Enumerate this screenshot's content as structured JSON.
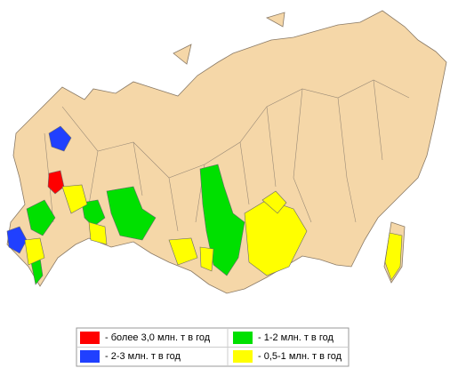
{
  "legend": {
    "items": [
      {
        "label": "- более 3,0 млн. т в год",
        "color": "#ff0000"
      },
      {
        "label": "- 1-2 млн. т в год",
        "color": "#00e000"
      },
      {
        "label": "- 2-3 млн. т в год",
        "color": "#2040ff"
      },
      {
        "label": "- 0,5-1 млн. т в год",
        "color": "#ffff00"
      }
    ]
  }
}
